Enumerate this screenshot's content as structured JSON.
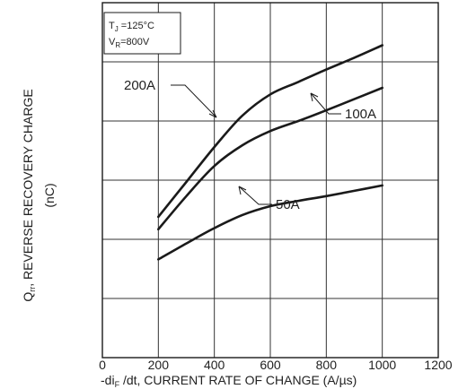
{
  "chart_data": {
    "type": "line",
    "xlabel_pre": "-di",
    "xlabel_sub": "F",
    "xlabel_post": " /dt, CURRENT RATE OF CHANGE (A/µs)",
    "ylabel_pre": "Q",
    "ylabel_sub": "rr",
    "ylabel_post": ", REVERSE RECOVERY CHARGE",
    "ylabel_unit": "(nC)",
    "xlim": [
      0,
      1200
    ],
    "x_ticks": [
      "0",
      "200",
      "400",
      "600",
      "800",
      "1000",
      "1200"
    ],
    "y_gridlines": 6,
    "grid": true,
    "conditions": {
      "tj_main": "T",
      "tj_sub": "J",
      "tj_value": " =125°C",
      "vr_main": "V",
      "vr_sub": "R",
      "vr_value": "=800V"
    },
    "series": [
      {
        "name": "200A",
        "x": [
          200,
          300,
          400,
          500,
          600,
          700,
          800,
          900,
          1000
        ],
        "y": [
          2.38,
          2.97,
          3.56,
          4.09,
          4.45,
          4.66,
          4.87,
          5.07,
          5.28
        ]
      },
      {
        "name": "100A",
        "x": [
          200,
          300,
          400,
          500,
          600,
          700,
          800,
          900,
          1000
        ],
        "y": [
          2.17,
          2.73,
          3.24,
          3.59,
          3.83,
          4.0,
          4.18,
          4.37,
          4.56
        ]
      },
      {
        "name": "50A",
        "x": [
          200,
          300,
          400,
          500,
          600,
          700,
          800,
          900,
          1000
        ],
        "y": [
          1.66,
          1.93,
          2.19,
          2.41,
          2.56,
          2.65,
          2.73,
          2.82,
          2.91
        ]
      }
    ]
  }
}
